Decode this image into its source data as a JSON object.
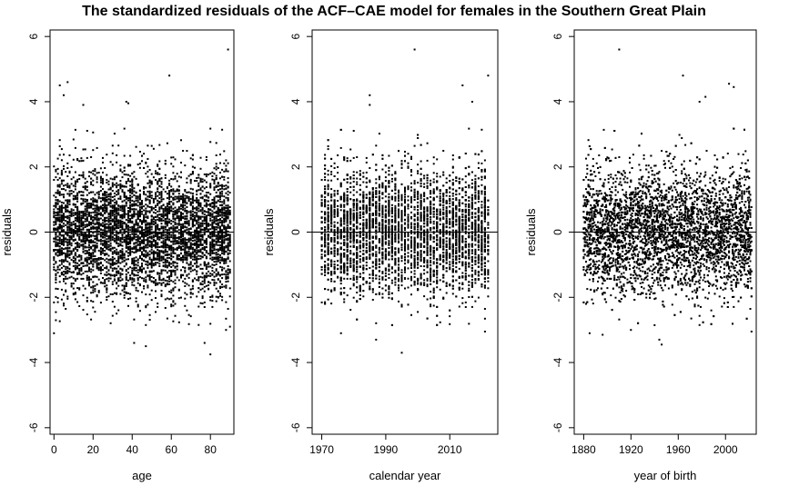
{
  "figure": {
    "title": "The standardized residuals of the ACF–CAE model for females in the Southern Great Plain"
  },
  "chart_data": [
    {
      "type": "scatter",
      "xlabel": "age",
      "ylabel": "residuals",
      "xlim": [
        -2,
        92
      ],
      "ylim": [
        -6.2,
        6.2
      ],
      "x_ticks": [
        0,
        20,
        40,
        60,
        80
      ],
      "y_ticks": [
        -6,
        -4,
        -2,
        0,
        2,
        4,
        6
      ],
      "reference_line_y": 0,
      "x_range": [
        0,
        90
      ],
      "point_cloud": {
        "count": 5000,
        "center": 0,
        "spread_sd": 0.95,
        "x_step": 1
      },
      "outliers": [
        [
          3,
          4.5
        ],
        [
          5,
          4.2
        ],
        [
          7,
          4.6
        ],
        [
          15,
          3.9
        ],
        [
          37,
          4.0
        ],
        [
          38,
          3.95
        ],
        [
          59,
          4.8
        ],
        [
          89,
          5.6
        ],
        [
          0,
          -3.1
        ],
        [
          41,
          -3.4
        ],
        [
          47,
          -3.5
        ],
        [
          77,
          -3.4
        ],
        [
          80,
          -3.75
        ],
        [
          88,
          -3.0
        ],
        [
          90,
          -2.9
        ]
      ]
    },
    {
      "type": "scatter",
      "xlabel": "calendar year",
      "ylabel": "residuals",
      "xlim": [
        1967,
        2025
      ],
      "ylim": [
        -6.2,
        6.2
      ],
      "x_ticks": [
        1970,
        1990,
        2010
      ],
      "y_ticks": [
        -6,
        -4,
        -2,
        0,
        2,
        4,
        6
      ],
      "reference_line_y": 0,
      "x_range": [
        1970,
        2022
      ],
      "point_cloud": {
        "count": 5000,
        "center": 0,
        "spread_sd": 0.95,
        "x_step": 1
      },
      "outliers": [
        [
          1985,
          4.2
        ],
        [
          1985,
          3.9
        ],
        [
          1999,
          5.6
        ],
        [
          2014,
          4.5
        ],
        [
          2017,
          4.0
        ],
        [
          2022,
          4.8
        ],
        [
          2021,
          -3.05
        ],
        [
          1987,
          -3.3
        ],
        [
          1995,
          -3.7
        ],
        [
          1976,
          -3.1
        ]
      ]
    },
    {
      "type": "scatter",
      "xlabel": "year of birth",
      "ylabel": "residuals",
      "xlim": [
        1872,
        2026
      ],
      "ylim": [
        -6.2,
        6.2
      ],
      "x_ticks": [
        1880,
        1920,
        1960,
        2000
      ],
      "y_ticks": [
        -6,
        -4,
        -2,
        0,
        2,
        4,
        6
      ],
      "reference_line_y": 0,
      "x_range": [
        1880,
        2022
      ],
      "point_cloud": {
        "count": 5000,
        "center": 0,
        "spread_sd": 0.95,
        "x_step": 1
      },
      "outliers": [
        [
          1910,
          5.6
        ],
        [
          1964,
          4.8
        ],
        [
          1978,
          4.0
        ],
        [
          1983,
          4.15
        ],
        [
          2003,
          4.55
        ],
        [
          2007,
          4.45
        ],
        [
          1885,
          -3.1
        ],
        [
          1896,
          -3.15
        ],
        [
          1944,
          -3.3
        ],
        [
          1946,
          -3.45
        ],
        [
          2022,
          -3.05
        ],
        [
          1920,
          -3.0
        ]
      ]
    }
  ]
}
